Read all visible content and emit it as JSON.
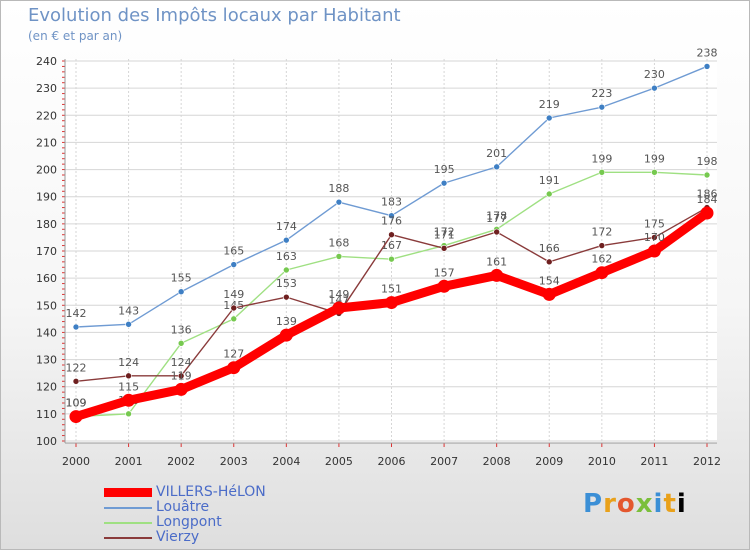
{
  "header": {
    "title": "Evolution des Impôts locaux par Habitant",
    "subtitle": "(en € et par an)"
  },
  "logo": {
    "letters": [
      "P",
      "r",
      "o",
      "x",
      "i",
      "t",
      "i"
    ]
  },
  "chart_data": {
    "type": "line",
    "title": "Evolution des Impôts locaux par Habitant",
    "subtitle": "(en € et par an)",
    "xlabel": "",
    "ylabel": "",
    "x": [
      "2000",
      "2001",
      "2002",
      "2003",
      "2004",
      "2005",
      "2006",
      "2007",
      "2008",
      "2009",
      "2010",
      "2011",
      "2012"
    ],
    "ylim": [
      100,
      240
    ],
    "yticks": [
      100,
      110,
      120,
      130,
      140,
      150,
      160,
      170,
      180,
      190,
      200,
      210,
      220,
      230,
      240
    ],
    "grid": true,
    "legend": "bottom-left",
    "series": [
      {
        "name": "Louâtre",
        "color": "#6f9bd3",
        "marker": "#3e7fc4",
        "values": [
          142,
          143,
          155,
          165,
          174,
          188,
          183,
          195,
          201,
          219,
          223,
          230,
          238
        ]
      },
      {
        "name": "Longpont",
        "color": "#9fe082",
        "marker": "#76c94f",
        "values": [
          109,
          110,
          136,
          145,
          163,
          168,
          167,
          172,
          178,
          191,
          199,
          199,
          198
        ]
      },
      {
        "name": "Vierzy",
        "color": "#8a3b3b",
        "marker": "#6e1f1f",
        "values": [
          122,
          124,
          124,
          149,
          153,
          147,
          176,
          171,
          177,
          166,
          172,
          175,
          186
        ]
      },
      {
        "name": "VILLERS-HéLON",
        "color": "#ff0000",
        "marker": "#ff0000",
        "values": [
          109,
          115,
          119,
          127,
          139,
          149,
          151,
          157,
          161,
          154,
          162,
          170,
          184
        ]
      }
    ],
    "legend_order": [
      "VILLERS-HéLON",
      "Louâtre",
      "Longpont",
      "Vierzy"
    ]
  }
}
